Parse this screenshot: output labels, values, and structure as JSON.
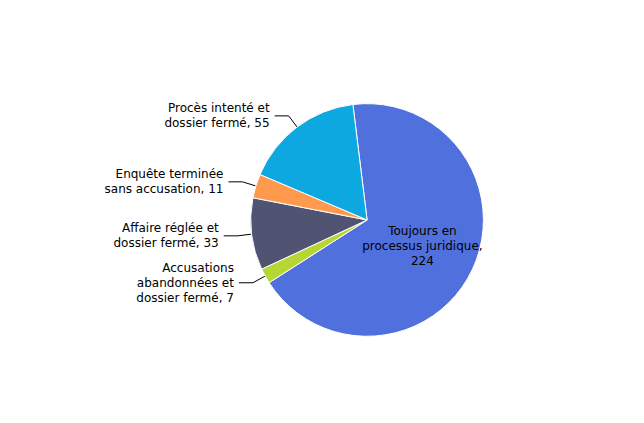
{
  "chart_data": {
    "type": "pie",
    "categories": [
      "Toujours en\nprocessus juridique,\n224",
      "Accusations\nabandonnées et\ndossier fermé, 7",
      "Affaire réglée et\ndossier fermé, 33",
      "Enquête terminée\nsans accusation, 11",
      "Procès intenté et\ndossier fermé, 55"
    ],
    "values": [
      224,
      7,
      33,
      11,
      55
    ]
  }
}
